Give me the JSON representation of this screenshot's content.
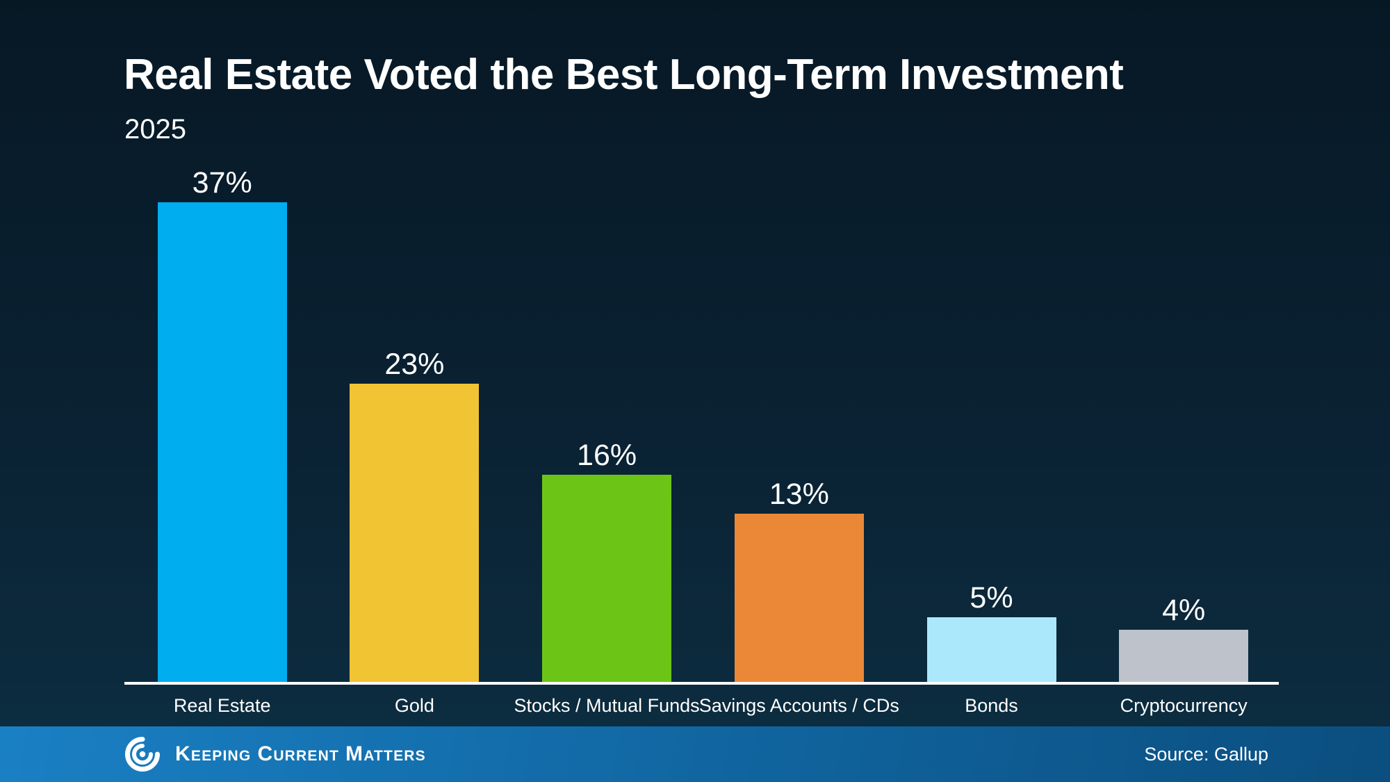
{
  "header": {
    "title": "Real Estate Voted the Best Long-Term Investment",
    "subtitle": "2025"
  },
  "chart_data": {
    "type": "bar",
    "title": "Real Estate Voted the Best Long-Term Investment",
    "subtitle": "2025",
    "categories": [
      "Real Estate",
      "Gold",
      "Stocks / Mutual Funds",
      "Savings Accounts / CDs",
      "Bonds",
      "Cryptocurrency"
    ],
    "values": [
      37,
      23,
      16,
      13,
      5,
      4
    ],
    "value_labels": [
      "37%",
      "23%",
      "16%",
      "13%",
      "5%",
      "4%"
    ],
    "bar_colors": [
      "#00ADEF",
      "#F1C433",
      "#6CC516",
      "#EB8837",
      "#ACE8FB",
      "#BEC3CB"
    ],
    "xlabel": "",
    "ylabel": "",
    "ylim": [
      0,
      40
    ],
    "grid": false,
    "legend": "none",
    "value_suffix": "%",
    "axis_line_color": "#FFFFFF"
  },
  "footer": {
    "brand": "Keeping Current Matters",
    "source": "Source: Gallup",
    "logo_icon": "kcm-swirl-icon",
    "bar_color_left": "#1A80C4",
    "bar_color_right": "#0B4E7F"
  },
  "theme": {
    "background_top": "#071825",
    "background_bottom": "#0D2E42",
    "text_color": "#FFFFFF"
  }
}
